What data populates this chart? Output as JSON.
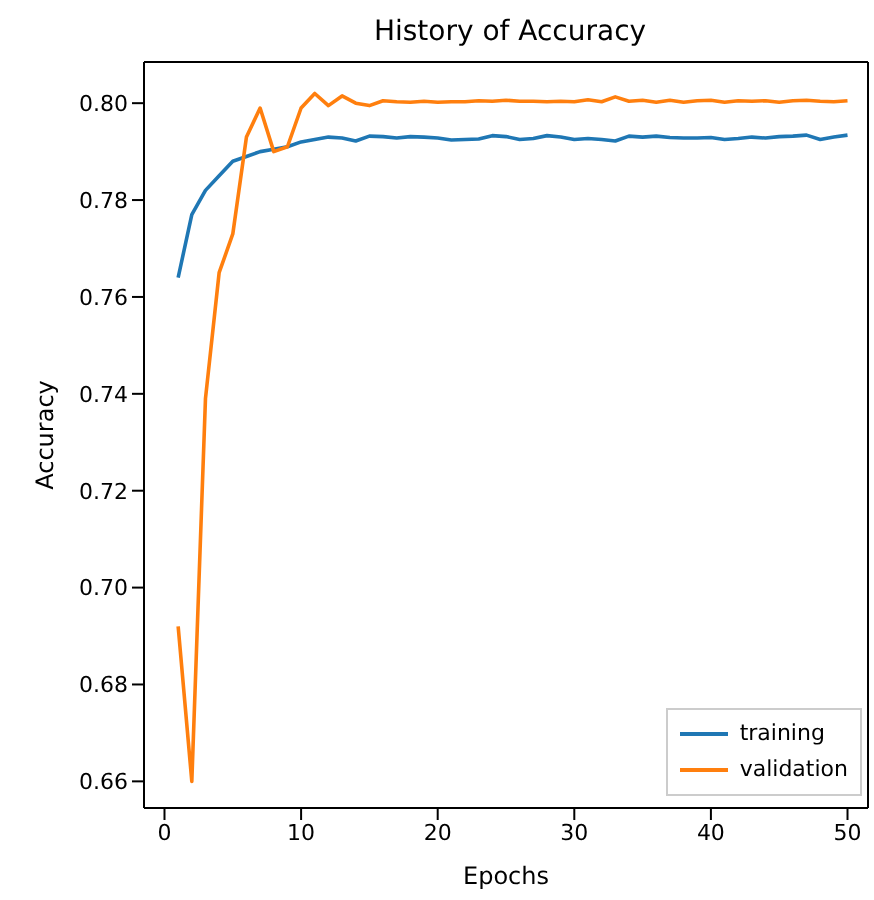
{
  "chart_data": {
    "type": "line",
    "title": "History of Accuracy",
    "xlabel": "Epochs",
    "ylabel": "Accuracy",
    "x": [
      1,
      2,
      3,
      4,
      5,
      6,
      7,
      8,
      9,
      10,
      11,
      12,
      13,
      14,
      15,
      16,
      17,
      18,
      19,
      20,
      21,
      22,
      23,
      24,
      25,
      26,
      27,
      28,
      29,
      30,
      31,
      32,
      33,
      34,
      35,
      36,
      37,
      38,
      39,
      40,
      41,
      42,
      43,
      44,
      45,
      46,
      47,
      48,
      49,
      50
    ],
    "series": [
      {
        "name": "training",
        "color": "#1f77b4",
        "values": [
          0.764,
          0.777,
          0.782,
          0.785,
          0.788,
          0.789,
          0.79,
          0.7905,
          0.791,
          0.792,
          0.7925,
          0.793,
          0.7928,
          0.7922,
          0.7932,
          0.7931,
          0.7928,
          0.7931,
          0.793,
          0.7928,
          0.7924,
          0.7925,
          0.7926,
          0.7933,
          0.7931,
          0.7925,
          0.7927,
          0.7933,
          0.793,
          0.7925,
          0.7927,
          0.7925,
          0.7922,
          0.7932,
          0.793,
          0.7932,
          0.7929,
          0.7928,
          0.7928,
          0.7929,
          0.7925,
          0.7927,
          0.793,
          0.7928,
          0.7931,
          0.7932,
          0.7934,
          0.7925,
          0.793,
          0.7934
        ]
      },
      {
        "name": "validation",
        "color": "#ff7f0e",
        "values": [
          0.692,
          0.66,
          0.739,
          0.765,
          0.773,
          0.793,
          0.799,
          0.79,
          0.791,
          0.799,
          0.802,
          0.7995,
          0.8015,
          0.8,
          0.7995,
          0.8005,
          0.8003,
          0.8002,
          0.8004,
          0.8002,
          0.8003,
          0.8003,
          0.8005,
          0.8004,
          0.8006,
          0.8004,
          0.8004,
          0.8003,
          0.8004,
          0.8003,
          0.8007,
          0.8003,
          0.8013,
          0.8004,
          0.8006,
          0.8002,
          0.8006,
          0.8002,
          0.8005,
          0.8006,
          0.8002,
          0.8005,
          0.8004,
          0.8005,
          0.8002,
          0.8005,
          0.8006,
          0.8004,
          0.8003,
          0.8005
        ]
      }
    ],
    "xlim": [
      -1.5,
      51.5
    ],
    "xticks": [
      0,
      10,
      20,
      30,
      40,
      50
    ],
    "ylim": [
      0.6545,
      0.8085
    ],
    "yticks": [
      {
        "value": 0.66,
        "label": "0.66"
      },
      {
        "value": 0.68,
        "label": "0.68"
      },
      {
        "value": 0.7,
        "label": "0.70"
      },
      {
        "value": 0.72,
        "label": "0.72"
      },
      {
        "value": 0.74,
        "label": "0.74"
      },
      {
        "value": 0.76,
        "label": "0.76"
      },
      {
        "value": 0.78,
        "label": "0.78"
      },
      {
        "value": 0.8,
        "label": "0.80"
      }
    ],
    "legend": "bottom right",
    "grid": false,
    "marker": "none",
    "line_style": "solid"
  }
}
